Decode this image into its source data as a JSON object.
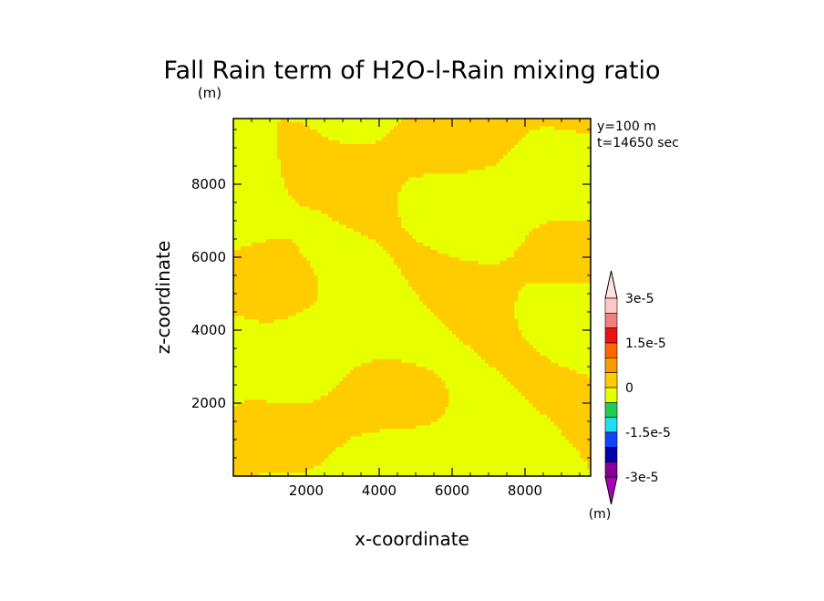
{
  "chart_data": {
    "type": "heatmap",
    "title": "Fall Rain term of H2O-l-Rain mixing ratio",
    "title_unit": "(m)",
    "xlabel": "x-coordinate",
    "ylabel": "z-coordinate",
    "xlim": [
      0,
      9800
    ],
    "ylim": [
      0,
      9800
    ],
    "x_ticks": [
      2000,
      4000,
      6000,
      8000
    ],
    "y_ticks": [
      2000,
      4000,
      6000,
      8000
    ],
    "x_tick_labels": [
      "2000",
      "4000",
      "6000",
      "8000"
    ],
    "y_tick_labels": [
      "2000",
      "4000",
      "6000",
      "8000"
    ],
    "annotations": [
      "y=100 m",
      "t=14650 sec"
    ],
    "field_classes": [
      {
        "range": "negative-small",
        "color": "#e8ff00"
      },
      {
        "range": "positive-small",
        "color": "#ffcc00"
      }
    ],
    "colorbar": {
      "unit": "(m)",
      "levels": [
        -3e-05,
        -2.25e-05,
        -1.5e-05,
        -7.5e-06,
        0,
        7.5e-06,
        1.5e-05,
        2.25e-05,
        3e-05
      ],
      "labels": [
        "3e-5",
        "1.5e-5",
        "0",
        "-1.5e-5",
        "-3e-5"
      ],
      "colors_top_to_bottom": [
        "#ffc8c8",
        "#f08080",
        "#ee1111",
        "#ff6600",
        "#ff9900",
        "#ffcc00",
        "#e8ff00",
        "#22cc55",
        "#22ddee",
        "#1144ff",
        "#0000aa",
        "#880099"
      ],
      "extend_top_color": "#ffe0e0",
      "extend_bottom_color": "#aa00bb"
    }
  }
}
